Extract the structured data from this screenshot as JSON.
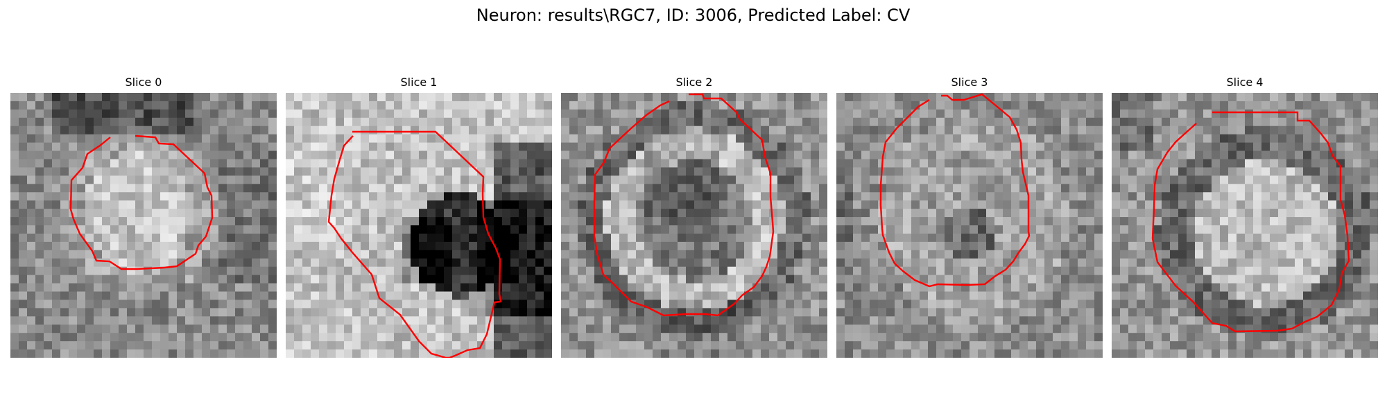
{
  "figure": {
    "suptitle": "Neuron: results\\RGC7, ID: 3006, Predicted Label: CV"
  },
  "panels": [
    {
      "title": "Slice 0"
    },
    {
      "title": "Slice 1"
    },
    {
      "title": "Slice 2"
    },
    {
      "title": "Slice 3"
    },
    {
      "title": "Slice 4"
    }
  ],
  "colors": {
    "background": "#ffffff",
    "contour": "#ff0000",
    "text": "#000000"
  }
}
